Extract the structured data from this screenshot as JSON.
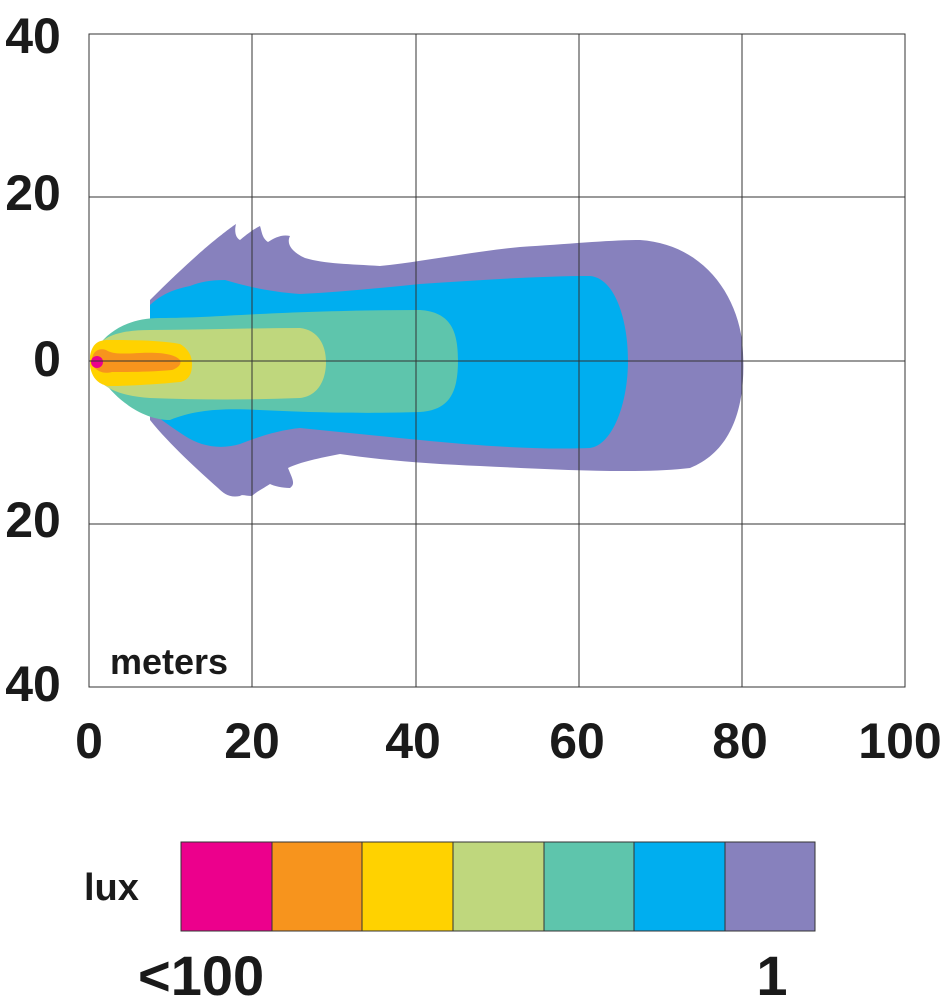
{
  "chart_data": {
    "type": "heatmap",
    "description_kind": "beam illuminance isolux contour plot",
    "x_ticks": [
      "0",
      "20",
      "40",
      "60",
      "80",
      "100"
    ],
    "y_ticks": [
      "40",
      "20",
      "0",
      "20",
      "40"
    ],
    "xlim": [
      0,
      100
    ],
    "ylim": [
      -40,
      40
    ],
    "grid": true,
    "unit_label": "meters",
    "legend": {
      "title": "lux",
      "low_label": "<100",
      "high_label": "1",
      "colors": [
        "#ec008c",
        "#f7941d",
        "#ffd200",
        "#bfd77d",
        "#5ec5ac",
        "#00aeef",
        "#8781bd"
      ]
    },
    "contours": [
      {
        "color": "#8781bd",
        "reach_m": 80,
        "max_half_width_m": 16
      },
      {
        "color": "#00aeef",
        "reach_m": 66,
        "max_half_width_m": 11
      },
      {
        "color": "#5ec5ac",
        "reach_m": 45,
        "max_half_width_m": 6
      },
      {
        "color": "#bfd77d",
        "reach_m": 29,
        "max_half_width_m": 4
      },
      {
        "color": "#ffd200",
        "reach_m": 12.5,
        "max_half_width_m": 2
      },
      {
        "color": "#f7941d",
        "reach_m": 11,
        "max_half_width_m": 1
      },
      {
        "color": "#ec008c",
        "reach_m": 1,
        "max_half_width_m": 0.6
      }
    ]
  }
}
